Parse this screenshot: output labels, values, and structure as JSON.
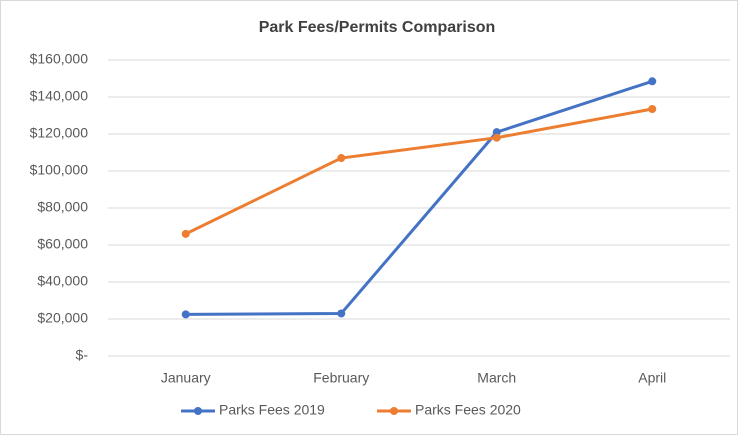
{
  "chart_data": {
    "type": "line",
    "title": "Park Fees/Permits Comparison",
    "categories": [
      "January",
      "February",
      "March",
      "April"
    ],
    "series": [
      {
        "name": "Parks Fees 2019",
        "color": "#4472c4",
        "values": [
          22500,
          23000,
          121000,
          148500
        ]
      },
      {
        "name": "Parks Fees 2020",
        "color": "#ed7d31",
        "values": [
          66000,
          107000,
          118000,
          133500
        ]
      }
    ],
    "ylim": [
      0,
      160000
    ],
    "yticks": [
      {
        "value": 0,
        "label": "$-"
      },
      {
        "value": 20000,
        "label": "$20,000"
      },
      {
        "value": 40000,
        "label": "$40,000"
      },
      {
        "value": 60000,
        "label": "$60,000"
      },
      {
        "value": 80000,
        "label": "$80,000"
      },
      {
        "value": 100000,
        "label": "$100,000"
      },
      {
        "value": 120000,
        "label": "$120,000"
      },
      {
        "value": 140000,
        "label": "$140,000"
      },
      {
        "value": 160000,
        "label": "$160,000"
      }
    ],
    "grid": true,
    "legend": "bottom"
  }
}
